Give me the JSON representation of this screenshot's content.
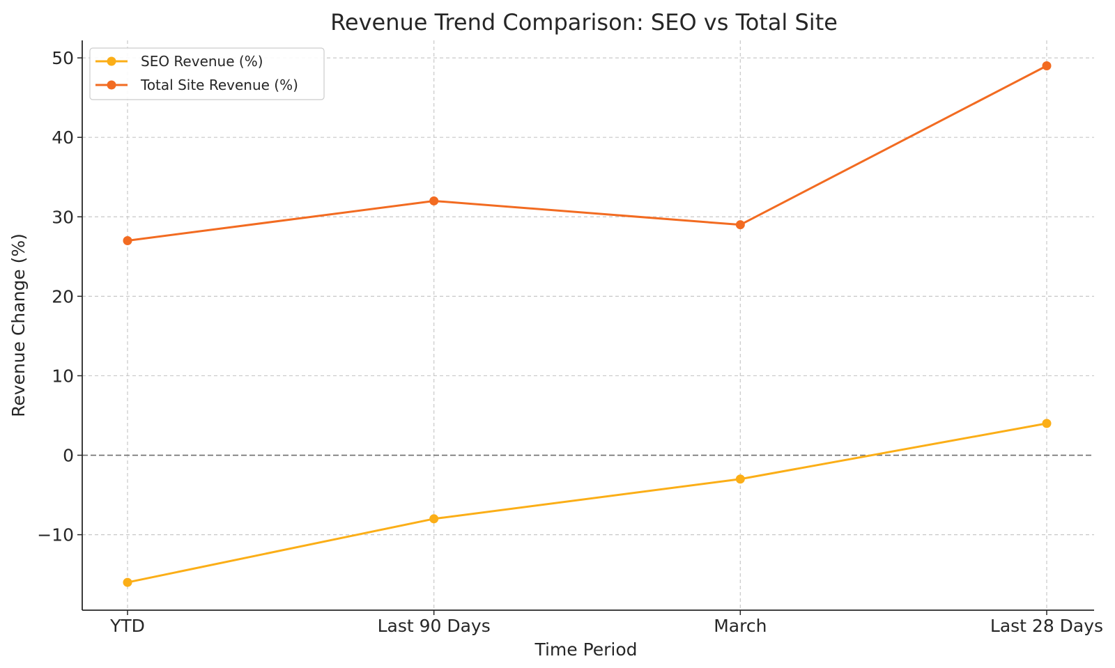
{
  "chart_data": {
    "type": "line",
    "title": "Revenue Trend Comparison: SEO vs Total Site",
    "xlabel": "Time Period",
    "ylabel": "Revenue Change (%)",
    "categories": [
      "YTD",
      "Last 90 Days",
      "March",
      "Last 28 Days"
    ],
    "ylim": [
      -19.5,
      52.2
    ],
    "yticks": [
      -10,
      0,
      10,
      20,
      30,
      40,
      50
    ],
    "ytick_labels": [
      "−10",
      "0",
      "10",
      "20",
      "30",
      "40",
      "50"
    ],
    "grid": true,
    "zero_reference_line": true,
    "legend_position": "top-left",
    "series": [
      {
        "name": "SEO Revenue (%)",
        "color": "#FBAE17",
        "values": [
          -16,
          -8,
          -3,
          4
        ]
      },
      {
        "name": "Total Site Revenue (%)",
        "color": "#F26B21",
        "values": [
          27,
          32,
          29,
          49
        ]
      }
    ]
  }
}
